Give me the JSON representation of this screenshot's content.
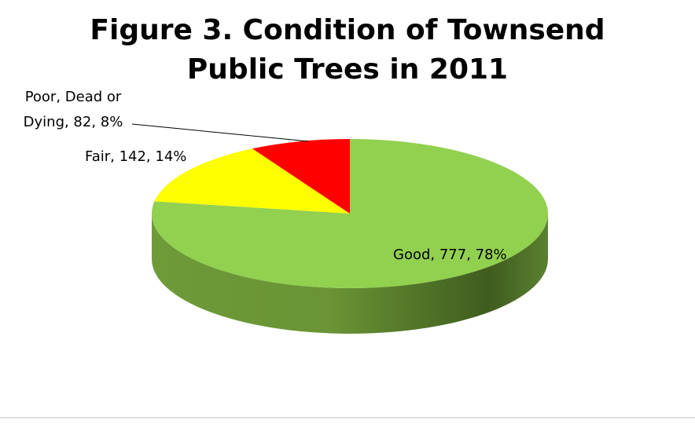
{
  "chart_data": {
    "type": "pie",
    "title": "Figure 3. Condition of Townsend Public Trees in 2011",
    "values": [
      777,
      142,
      82
    ],
    "value_labels": [
      "Good, 777, 78%",
      "Fair, 142, 14%",
      "Poor, Dead or Dying, 82, 8%"
    ],
    "colors": [
      "#92d050",
      "#ffff00",
      "#ff0000"
    ]
  }
}
